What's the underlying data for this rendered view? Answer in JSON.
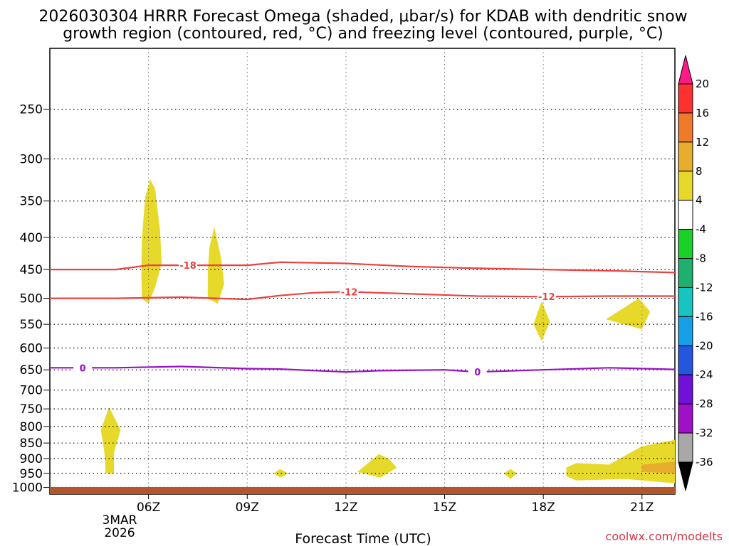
{
  "title_line1": "2026030304 HRRR Forecast Omega (shaded, μbar/s) for KDAB with dendritic snow",
  "title_line2": "growth region (contoured, red, °C) and freezing level (contoured, purple, °C)",
  "credit": "coolwx.com/modelts",
  "chart_data": {
    "type": "time-height contour",
    "xlabel": "Forecast Time (UTC)",
    "x_ticks": [
      "06Z",
      "09Z",
      "12Z",
      "15Z",
      "18Z",
      "21Z"
    ],
    "x_hours": [
      6,
      9,
      12,
      15,
      18,
      21
    ],
    "x_range_hours": [
      3,
      22
    ],
    "x_date_label": [
      "3MAR",
      "2026"
    ],
    "ylabel": "",
    "y_ticks": [
      250,
      300,
      350,
      400,
      450,
      500,
      550,
      600,
      650,
      700,
      750,
      800,
      850,
      900,
      950,
      1000
    ],
    "y_range_hpa": [
      200,
      1025
    ],
    "grid": true,
    "contours": [
      {
        "name": "-18",
        "color": "#ee4040",
        "label_hours": [
          7.2
        ],
        "points": [
          [
            3,
            450
          ],
          [
            5,
            450
          ],
          [
            6,
            443
          ],
          [
            7,
            443
          ],
          [
            9,
            443
          ],
          [
            10,
            438
          ],
          [
            12,
            440
          ],
          [
            14,
            445
          ],
          [
            16,
            448
          ],
          [
            18,
            450
          ],
          [
            20,
            452
          ],
          [
            22,
            455
          ]
        ]
      },
      {
        "name": "-12",
        "color": "#ee4040",
        "label_hours": [
          12.1,
          18.1
        ],
        "points": [
          [
            3,
            500
          ],
          [
            5,
            500
          ],
          [
            7,
            498
          ],
          [
            9,
            502
          ],
          [
            10,
            495
          ],
          [
            11,
            490
          ],
          [
            12,
            488
          ],
          [
            14,
            492
          ],
          [
            16,
            496
          ],
          [
            18,
            497
          ],
          [
            20,
            496
          ],
          [
            22,
            496
          ]
        ]
      },
      {
        "name": "0",
        "color": "#9a10c8",
        "label_hours": [
          4.0,
          16.0
        ],
        "points": [
          [
            3,
            645
          ],
          [
            5,
            645
          ],
          [
            7,
            642
          ],
          [
            9,
            647
          ],
          [
            10,
            648
          ],
          [
            12,
            655
          ],
          [
            13,
            652
          ],
          [
            15,
            650
          ],
          [
            16,
            655
          ],
          [
            18,
            650
          ],
          [
            20,
            645
          ],
          [
            22,
            649
          ]
        ]
      }
    ],
    "shaded_regions": [
      {
        "bin": "4 to 8",
        "points": [
          [
            5.8,
            500
          ],
          [
            5.78,
            460
          ],
          [
            5.8,
            400
          ],
          [
            5.9,
            345
          ],
          [
            6.05,
            323
          ],
          [
            6.2,
            335
          ],
          [
            6.35,
            390
          ],
          [
            6.4,
            440
          ],
          [
            6.2,
            480
          ],
          [
            6.0,
            510
          ]
        ]
      },
      {
        "bin": "4 to 8",
        "points": [
          [
            7.8,
            500
          ],
          [
            7.8,
            455
          ],
          [
            7.85,
            415
          ],
          [
            8.0,
            385
          ],
          [
            8.2,
            430
          ],
          [
            8.3,
            475
          ],
          [
            8.1,
            510
          ]
        ]
      },
      {
        "bin": "4 to 8",
        "points": [
          [
            4.7,
            950
          ],
          [
            4.66,
            880
          ],
          [
            4.55,
            810
          ],
          [
            4.8,
            745
          ],
          [
            5.15,
            810
          ],
          [
            4.95,
            880
          ],
          [
            4.95,
            950
          ]
        ]
      },
      {
        "bin": "4 to 8",
        "points": [
          [
            9.8,
            950
          ],
          [
            10.0,
            935
          ],
          [
            10.25,
            950
          ],
          [
            10.0,
            965
          ]
        ]
      },
      {
        "bin": "4 to 8",
        "points": [
          [
            12.35,
            945
          ],
          [
            13.0,
            885
          ],
          [
            13.3,
            900
          ],
          [
            13.55,
            930
          ],
          [
            13.05,
            965
          ]
        ]
      },
      {
        "bin": "4 to 8",
        "points": [
          [
            16.8,
            950
          ],
          [
            17.0,
            935
          ],
          [
            17.2,
            950
          ],
          [
            17.0,
            970
          ]
        ]
      },
      {
        "bin": "4 to 8",
        "points": [
          [
            17.7,
            550
          ],
          [
            17.95,
            505
          ],
          [
            18.2,
            545
          ],
          [
            17.95,
            585
          ]
        ]
      },
      {
        "bin": "4 to 8",
        "points": [
          [
            19.9,
            540
          ],
          [
            20.9,
            500
          ],
          [
            21.25,
            525
          ],
          [
            21.0,
            560
          ]
        ]
      },
      {
        "bin": "4 to 8",
        "points": [
          [
            18.7,
            930
          ],
          [
            19.0,
            915
          ],
          [
            20.0,
            920
          ],
          [
            21.0,
            860
          ],
          [
            22,
            840
          ],
          [
            22,
            985
          ],
          [
            20.5,
            970
          ],
          [
            19.0,
            975
          ],
          [
            18.7,
            960
          ]
        ]
      },
      {
        "bin": "8 to 12",
        "points": [
          [
            21.0,
            920
          ],
          [
            22,
            910
          ],
          [
            22,
            950
          ],
          [
            21.0,
            945
          ]
        ]
      }
    ],
    "colorbar": {
      "labels": [
        "20",
        "16",
        "12",
        "8",
        "4",
        "-4",
        "-8",
        "-12",
        "-16",
        "-20",
        "-24",
        "-28",
        "-32",
        "-36"
      ],
      "colors": [
        "#ff1a88",
        "#ff3030",
        "#ef7a2a",
        "#e8ad2d",
        "#e6d92a",
        "#ffffff",
        "#1ad12a",
        "#1fb070",
        "#18c4c0",
        "#16a0e8",
        "#2456e0",
        "#7010d8",
        "#a010c8",
        "#a8a8a8",
        "#000000"
      ]
    },
    "ground_color": "#b4562c"
  }
}
